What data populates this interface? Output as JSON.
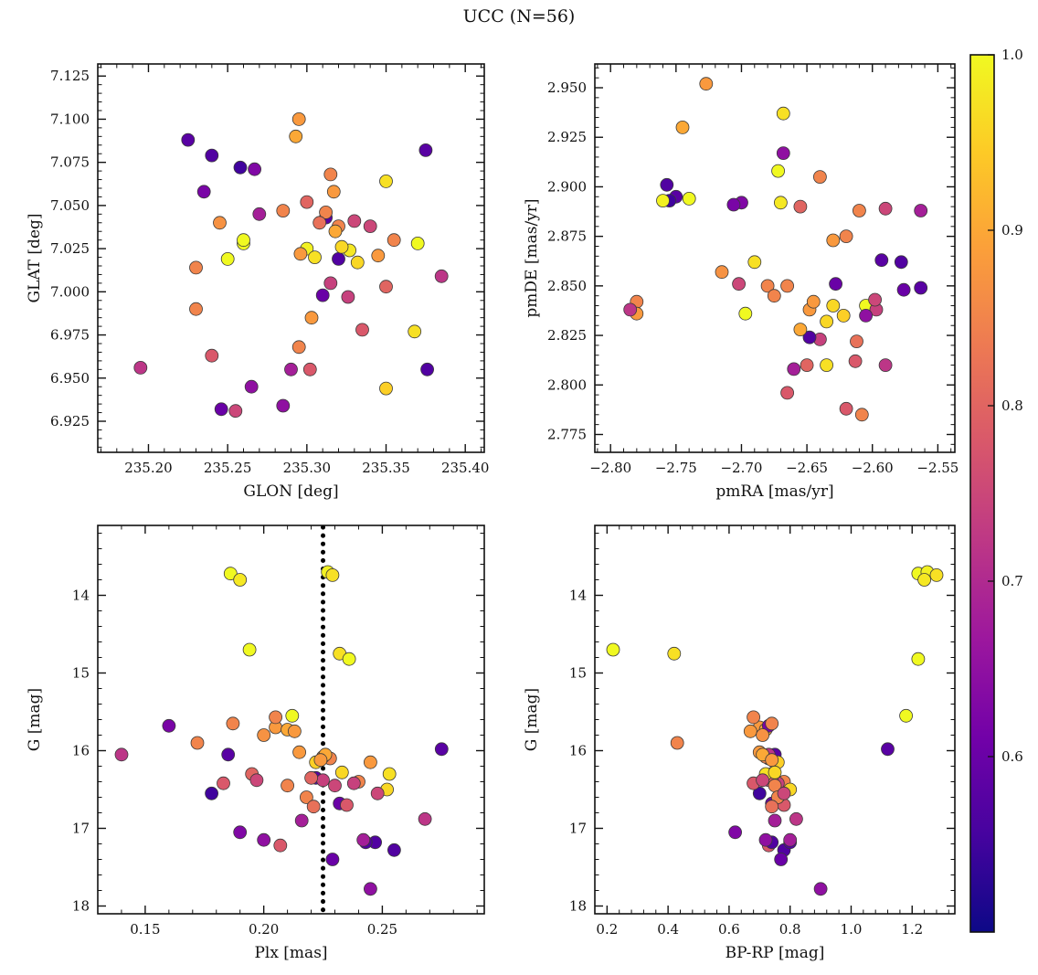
{
  "page": {
    "title": "UCC (N=56)"
  },
  "chart_data": {
    "type": "scatter",
    "title": "UCC (N=56)",
    "n_members": 56,
    "legend_position": "none",
    "grid": false,
    "colorbar": {
      "colormap": "plasma",
      "vmin": 0.5,
      "vmax": 1.0,
      "ticks": [
        0.6,
        0.7,
        0.8,
        0.9,
        1.0
      ],
      "tick_labels": [
        "0.6",
        "0.7",
        "0.8",
        "0.9",
        "1.0"
      ]
    },
    "panels": [
      {
        "id": "glon-glat",
        "xlabel": "GLON [deg]",
        "ylabel": "GLAT [deg]",
        "xfield": "glon",
        "yfield": "glat",
        "xlim": [
          235.168,
          235.412
        ],
        "ylim": [
          6.907,
          7.132
        ],
        "xticks": [
          235.2,
          235.25,
          235.3,
          235.35,
          235.4
        ],
        "xtick_labels": [
          "235.20",
          "235.25",
          "235.30",
          "235.35",
          "235.40"
        ],
        "yticks": [
          6.925,
          6.95,
          6.975,
          7.0,
          7.025,
          7.05,
          7.075,
          7.1,
          7.125
        ],
        "ytick_labels": [
          "6.925",
          "6.950",
          "6.975",
          "7.000",
          "7.025",
          "7.050",
          "7.075",
          "7.100",
          "7.125"
        ]
      },
      {
        "id": "pm",
        "xlabel": "pmRA [mas/yr]",
        "ylabel": "pmDE [mas/yr]",
        "xfield": "pmra",
        "yfield": "pmde",
        "xlim": [
          -2.812,
          -2.537
        ],
        "ylim": [
          2.766,
          2.962
        ],
        "xticks": [
          -2.8,
          -2.75,
          -2.7,
          -2.65,
          -2.6,
          -2.55
        ],
        "xtick_labels": [
          "−2.80",
          "−2.75",
          "−2.70",
          "−2.65",
          "−2.60",
          "−2.55"
        ],
        "yticks": [
          2.775,
          2.8,
          2.825,
          2.85,
          2.875,
          2.9,
          2.925,
          2.95
        ],
        "ytick_labels": [
          "2.775",
          "2.800",
          "2.825",
          "2.850",
          "2.875",
          "2.900",
          "2.925",
          "2.950"
        ]
      },
      {
        "id": "plx-g",
        "xlabel": "Plx [mas]",
        "ylabel": "G [mag]",
        "xfield": "plx",
        "yfield": "g",
        "xlim": [
          0.13,
          0.293
        ],
        "ylim": [
          18.1,
          13.1
        ],
        "xticks": [
          0.15,
          0.2,
          0.25
        ],
        "xtick_labels": [
          "0.15",
          "0.20",
          "0.25"
        ],
        "yticks": [
          14,
          15,
          16,
          17,
          18
        ],
        "ytick_labels": [
          "14",
          "15",
          "16",
          "17",
          "18"
        ],
        "vline": {
          "x": 0.225,
          "style": "dotted",
          "color": "#000000"
        }
      },
      {
        "id": "cmd",
        "xlabel": "BP-RP [mag]",
        "ylabel": "G [mag]",
        "xfield": "bprp",
        "yfield": "g",
        "xlim": [
          0.16,
          1.34
        ],
        "ylim": [
          18.1,
          13.1
        ],
        "xticks": [
          0.2,
          0.4,
          0.6,
          0.8,
          1.0,
          1.2
        ],
        "xtick_labels": [
          "0.2",
          "0.4",
          "0.6",
          "0.8",
          "1.0",
          "1.2"
        ],
        "yticks": [
          14,
          15,
          16,
          17,
          18
        ],
        "ytick_labels": [
          "14",
          "15",
          "16",
          "17",
          "18"
        ]
      }
    ],
    "star_fields": [
      "glon",
      "glat",
      "pmra",
      "pmde",
      "plx",
      "g",
      "bprp",
      "p"
    ],
    "stars": [
      [
        235.225,
        7.088,
        -2.75,
        2.895,
        0.185,
        16.05,
        0.75,
        0.58
      ],
      [
        235.295,
        7.1,
        -2.727,
        2.952,
        0.205,
        15.7,
        0.7,
        0.88
      ],
      [
        235.293,
        7.09,
        -2.745,
        2.93,
        0.21,
        15.73,
        0.72,
        0.9
      ],
      [
        235.24,
        7.079,
        -2.757,
        2.901,
        0.255,
        17.28,
        0.78,
        0.57
      ],
      [
        235.375,
        7.082,
        -2.593,
        2.863,
        0.275,
        15.98,
        1.12,
        0.58
      ],
      [
        235.258,
        7.072,
        -2.755,
        2.893,
        0.178,
        16.55,
        0.7,
        0.55
      ],
      [
        235.267,
        7.071,
        -2.7,
        2.892,
        0.19,
        17.05,
        0.62,
        0.63
      ],
      [
        235.315,
        7.068,
        -2.64,
        2.905,
        0.228,
        16.1,
        0.73,
        0.85
      ],
      [
        235.35,
        7.064,
        -2.668,
        2.937,
        0.232,
        14.75,
        0.42,
        0.97
      ],
      [
        235.235,
        7.058,
        -2.706,
        2.891,
        0.16,
        15.68,
        0.73,
        0.62
      ],
      [
        235.3,
        7.052,
        -2.655,
        2.89,
        0.195,
        16.3,
        0.74,
        0.8
      ],
      [
        235.285,
        7.047,
        -2.61,
        2.888,
        0.205,
        15.57,
        0.68,
        0.85
      ],
      [
        235.317,
        7.058,
        -2.63,
        2.873,
        0.213,
        15.75,
        0.67,
        0.88
      ],
      [
        235.312,
        7.043,
        -2.563,
        2.849,
        0.222,
        16.35,
        0.74,
        0.58
      ],
      [
        235.32,
        7.038,
        -2.68,
        2.85,
        0.225,
        16.08,
        0.72,
        0.85
      ],
      [
        235.33,
        7.041,
        -2.702,
        2.851,
        0.23,
        16.45,
        0.76,
        0.75
      ],
      [
        235.245,
        7.04,
        -2.715,
        2.857,
        0.2,
        15.8,
        0.71,
        0.87
      ],
      [
        235.26,
        7.028,
        -2.74,
        2.894,
        0.186,
        13.72,
        1.22,
        1.0
      ],
      [
        235.3,
        7.025,
        -2.76,
        2.893,
        0.227,
        13.7,
        1.25,
        0.99
      ],
      [
        235.305,
        7.02,
        -2.69,
        2.862,
        0.229,
        13.74,
        1.28,
        0.97
      ],
      [
        235.327,
        7.024,
        -2.67,
        2.892,
        0.19,
        13.8,
        1.24,
        0.98
      ],
      [
        235.355,
        7.03,
        -2.62,
        2.875,
        0.24,
        16.4,
        0.78,
        0.85
      ],
      [
        235.37,
        7.028,
        -2.605,
        2.84,
        0.236,
        14.82,
        1.22,
        1.0
      ],
      [
        235.345,
        7.021,
        -2.648,
        2.838,
        0.245,
        16.15,
        0.75,
        0.88
      ],
      [
        235.332,
        7.017,
        -2.635,
        2.832,
        0.252,
        16.5,
        0.8,
        0.96
      ],
      [
        235.25,
        7.019,
        -2.697,
        2.836,
        0.212,
        15.55,
        1.18,
        1.0
      ],
      [
        235.23,
        7.014,
        -2.665,
        2.85,
        0.187,
        15.65,
        0.74,
        0.85
      ],
      [
        235.32,
        7.019,
        -2.578,
        2.862,
        0.247,
        17.18,
        0.8,
        0.57
      ],
      [
        235.315,
        7.005,
        -2.64,
        2.823,
        0.225,
        16.38,
        0.73,
        0.74
      ],
      [
        235.31,
        6.998,
        -2.628,
        2.851,
        0.232,
        16.68,
        0.74,
        0.6
      ],
      [
        235.326,
        6.997,
        -2.597,
        2.838,
        0.238,
        16.42,
        0.76,
        0.74
      ],
      [
        235.35,
        7.003,
        -2.65,
        2.81,
        0.22,
        16.35,
        0.74,
        0.8
      ],
      [
        235.385,
        7.009,
        -2.59,
        2.81,
        0.268,
        16.88,
        0.82,
        0.72
      ],
      [
        235.23,
        6.99,
        -2.78,
        2.842,
        0.172,
        15.9,
        0.43,
        0.85
      ],
      [
        235.303,
        6.985,
        -2.78,
        2.836,
        0.215,
        16.02,
        0.7,
        0.88
      ],
      [
        235.335,
        6.978,
        -2.665,
        2.796,
        0.235,
        16.7,
        0.78,
        0.78
      ],
      [
        235.368,
        6.977,
        -2.635,
        2.81,
        0.253,
        16.3,
        0.72,
        0.97
      ],
      [
        235.24,
        6.963,
        -2.613,
        2.812,
        0.183,
        16.42,
        0.68,
        0.78
      ],
      [
        235.295,
        6.968,
        -2.608,
        2.785,
        0.21,
        16.45,
        0.75,
        0.85
      ],
      [
        235.195,
        6.956,
        -2.785,
        2.838,
        0.14,
        16.05,
        0.73,
        0.72
      ],
      [
        235.302,
        6.955,
        -2.62,
        2.788,
        0.207,
        17.22,
        0.73,
        0.78
      ],
      [
        235.35,
        6.944,
        -2.622,
        2.835,
        0.222,
        16.15,
        0.76,
        0.95
      ],
      [
        235.376,
        6.955,
        -2.648,
        2.824,
        0.243,
        17.18,
        0.74,
        0.57
      ],
      [
        235.265,
        6.945,
        -2.605,
        2.835,
        0.245,
        17.78,
        0.9,
        0.65
      ],
      [
        235.285,
        6.934,
        -2.668,
        2.917,
        0.2,
        17.15,
        0.72,
        0.65
      ],
      [
        235.255,
        6.931,
        -2.59,
        2.889,
        0.197,
        16.38,
        0.71,
        0.75
      ],
      [
        235.312,
        7.046,
        -2.675,
        2.845,
        0.218,
        16.6,
        0.76,
        0.85
      ],
      [
        235.318,
        7.035,
        -2.655,
        2.828,
        0.226,
        16.05,
        0.71,
        0.9
      ],
      [
        235.296,
        7.022,
        -2.645,
        2.842,
        0.224,
        16.12,
        0.74,
        0.88
      ],
      [
        235.322,
        7.026,
        -2.63,
        2.84,
        0.233,
        16.28,
        0.75,
        0.96
      ],
      [
        235.34,
        7.038,
        -2.598,
        2.843,
        0.248,
        16.55,
        0.78,
        0.75
      ],
      [
        235.308,
        7.04,
        -2.612,
        2.822,
        0.221,
        16.72,
        0.74,
        0.82
      ],
      [
        235.27,
        7.045,
        -2.66,
        2.808,
        0.216,
        16.9,
        0.75,
        0.68
      ],
      [
        235.246,
        6.932,
        -2.576,
        2.848,
        0.229,
        17.4,
        0.77,
        0.6
      ],
      [
        235.29,
        6.955,
        -2.563,
        2.888,
        0.242,
        17.15,
        0.8,
        0.68
      ],
      [
        235.26,
        7.03,
        -2.672,
        2.908,
        0.194,
        14.7,
        0.22,
        1.0
      ]
    ]
  }
}
